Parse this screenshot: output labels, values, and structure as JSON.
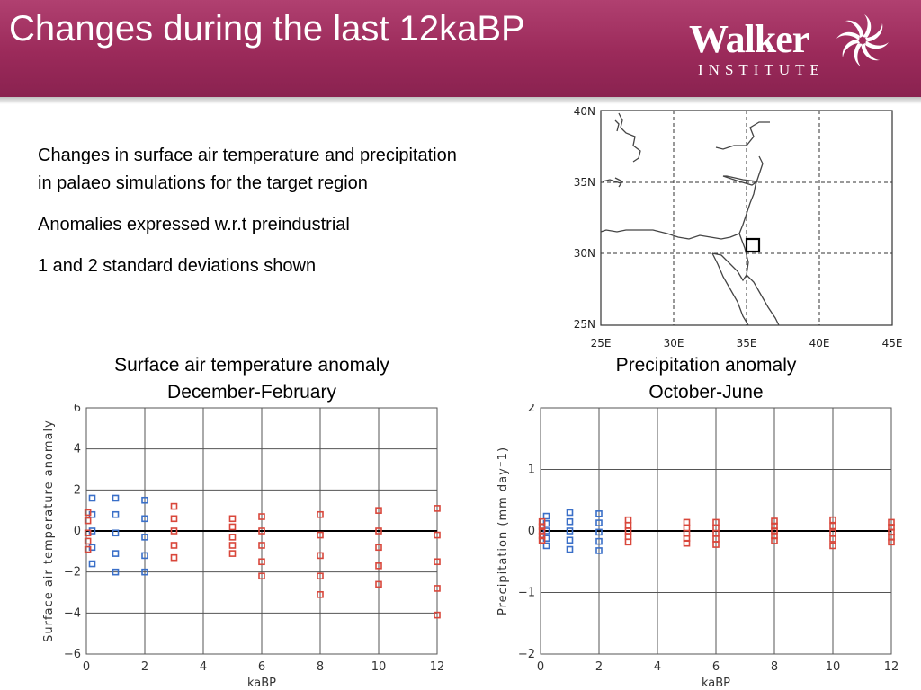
{
  "slide": {
    "title": "Changes during the last 12kaBP",
    "logo": {
      "word": "Walker",
      "sub": "INSTITUTE",
      "mark_icon": "pinwheel-icon"
    },
    "bullets": [
      "Changes in surface air temperature and precipitation in palaeo simulations for the target region",
      "Anomalies expressed w.r.t preindustrial",
      "1 and 2 standard deviations shown"
    ],
    "colors": {
      "header": "#9b2a5a",
      "pre_industrial_series": "#3a6fc8",
      "holocene_series": "#d9473b"
    }
  },
  "map": {
    "lat_labels": [
      "40N",
      "35N",
      "30N",
      "25N"
    ],
    "lon_labels": [
      "25E",
      "30E",
      "35E",
      "40E",
      "45E"
    ]
  },
  "chart_data": [
    {
      "type": "scatter",
      "title": "Surface air temperature anomaly December-February",
      "title_lines": [
        "Surface air temperature anomaly",
        "December-February"
      ],
      "xlabel": "kaBP",
      "ylabel": "Surface air temperature anomaly",
      "xlim": [
        0,
        12
      ],
      "ylim": [
        -6,
        6
      ],
      "xticks": [
        0,
        2,
        4,
        6,
        8,
        10,
        12
      ],
      "yticks": [
        -6,
        -4,
        -2,
        0,
        2,
        4,
        6
      ],
      "grid": true,
      "zero_line": true,
      "series": [
        {
          "color": "blue",
          "points": [
            [
              0.2,
              1.6
            ],
            [
              0.2,
              0.8
            ],
            [
              0.2,
              0.0
            ],
            [
              0.2,
              -0.8
            ],
            [
              0.2,
              -1.6
            ],
            [
              1,
              1.6
            ],
            [
              1,
              0.8
            ],
            [
              1,
              -0.1
            ],
            [
              1,
              -1.1
            ],
            [
              1,
              -2.0
            ],
            [
              2,
              1.5
            ],
            [
              2,
              0.6
            ],
            [
              2,
              -0.3
            ],
            [
              2,
              -1.2
            ],
            [
              2,
              -2.0
            ]
          ]
        },
        {
          "color": "red",
          "points": [
            [
              0.05,
              0.9
            ],
            [
              0.05,
              0.5
            ],
            [
              0.05,
              -0.1
            ],
            [
              0.05,
              -0.5
            ],
            [
              0.05,
              -0.9
            ],
            [
              3,
              1.2
            ],
            [
              3,
              0.6
            ],
            [
              3,
              0.0
            ],
            [
              3,
              -0.7
            ],
            [
              3,
              -1.3
            ],
            [
              5,
              0.6
            ],
            [
              5,
              0.2
            ],
            [
              5,
              -0.3
            ],
            [
              5,
              -0.7
            ],
            [
              5,
              -1.1
            ],
            [
              6,
              0.7
            ],
            [
              6,
              0.0
            ],
            [
              6,
              -0.7
            ],
            [
              6,
              -1.5
            ],
            [
              6,
              -2.2
            ],
            [
              8,
              0.8
            ],
            [
              8,
              -0.2
            ],
            [
              8,
              -1.2
            ],
            [
              8,
              -2.2
            ],
            [
              8,
              -3.1
            ],
            [
              10,
              1.0
            ],
            [
              10,
              0.0
            ],
            [
              10,
              -0.8
            ],
            [
              10,
              -1.7
            ],
            [
              10,
              -2.6
            ],
            [
              12,
              1.1
            ],
            [
              12,
              -0.2
            ],
            [
              12,
              -1.5
            ],
            [
              12,
              -2.8
            ],
            [
              12,
              -4.1
            ]
          ]
        }
      ]
    },
    {
      "type": "scatter",
      "title": "Precipitation anomaly October-June",
      "title_lines": [
        "Precipitation anomaly",
        "October-June"
      ],
      "xlabel": "kaBP",
      "ylabel": "Precipitation (mm day⁻1)",
      "xlim": [
        0,
        12
      ],
      "ylim": [
        -2,
        2
      ],
      "xticks": [
        0,
        2,
        4,
        6,
        8,
        10,
        12
      ],
      "yticks": [
        -2,
        -1,
        0,
        1,
        2
      ],
      "grid": true,
      "zero_line": true,
      "series": [
        {
          "color": "blue",
          "points": [
            [
              0.2,
              0.24
            ],
            [
              0.2,
              0.12
            ],
            [
              0.2,
              0.0
            ],
            [
              0.2,
              -0.12
            ],
            [
              0.2,
              -0.24
            ],
            [
              1,
              0.3
            ],
            [
              1,
              0.15
            ],
            [
              1,
              0.0
            ],
            [
              1,
              -0.15
            ],
            [
              1,
              -0.3
            ],
            [
              2,
              0.28
            ],
            [
              2,
              0.13
            ],
            [
              2,
              -0.02
            ],
            [
              2,
              -0.17
            ],
            [
              2,
              -0.32
            ]
          ]
        },
        {
          "color": "red",
          "points": [
            [
              0.05,
              0.15
            ],
            [
              0.05,
              0.07
            ],
            [
              0.05,
              0.0
            ],
            [
              0.05,
              -0.08
            ],
            [
              0.05,
              -0.15
            ],
            [
              3,
              0.18
            ],
            [
              3,
              0.09
            ],
            [
              3,
              0.0
            ],
            [
              3,
              -0.09
            ],
            [
              3,
              -0.18
            ],
            [
              5,
              0.14
            ],
            [
              5,
              0.05
            ],
            [
              5,
              -0.04
            ],
            [
              5,
              -0.12
            ],
            [
              5,
              -0.2
            ],
            [
              6,
              0.14
            ],
            [
              6,
              0.05
            ],
            [
              6,
              -0.04
            ],
            [
              6,
              -0.13
            ],
            [
              6,
              -0.22
            ],
            [
              8,
              0.16
            ],
            [
              8,
              0.08
            ],
            [
              8,
              0.0
            ],
            [
              8,
              -0.08
            ],
            [
              8,
              -0.16
            ],
            [
              10,
              0.18
            ],
            [
              10,
              0.08
            ],
            [
              10,
              -0.03
            ],
            [
              10,
              -0.13
            ],
            [
              10,
              -0.24
            ],
            [
              12,
              0.14
            ],
            [
              12,
              0.06
            ],
            [
              12,
              -0.02
            ],
            [
              12,
              -0.1
            ],
            [
              12,
              -0.18
            ]
          ]
        }
      ]
    }
  ]
}
